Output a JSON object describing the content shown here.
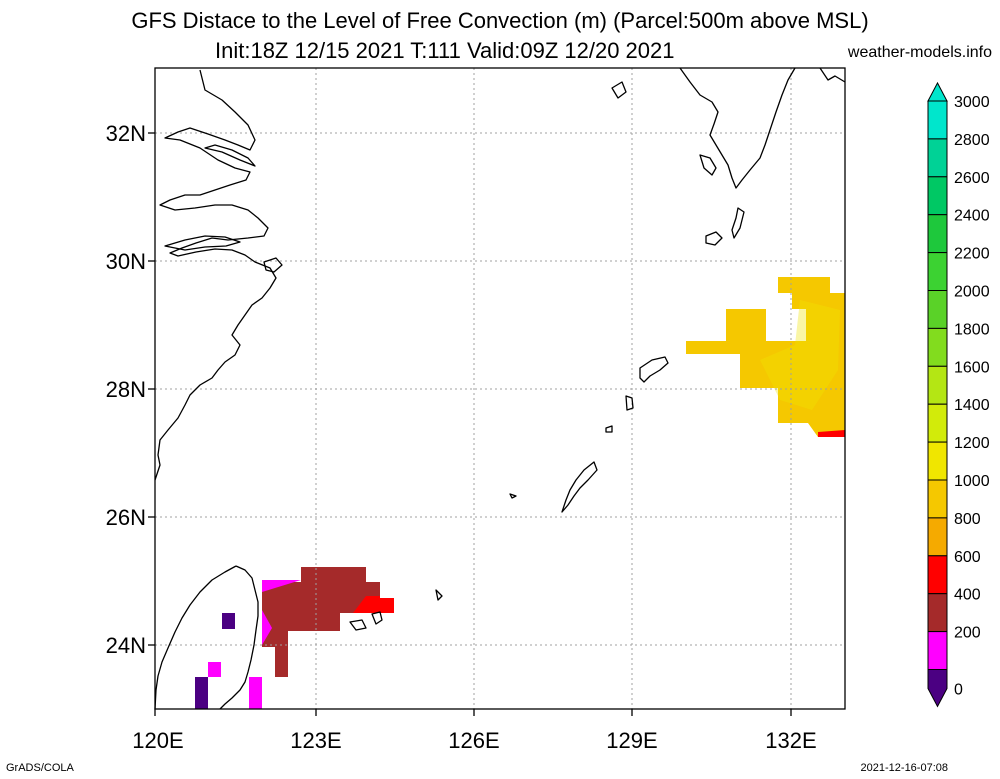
{
  "title": {
    "line1": "GFS Distace to the Level of Free Convection (m) (Parcel:500m above MSL)",
    "line2": "Init:18Z 12/15 2021 T:111 Valid:09Z 12/20 2021"
  },
  "site": "weather-models.info",
  "footer": {
    "left": "GrADS/COLA",
    "right": "2021-12-16-07:08"
  },
  "map": {
    "lat_labels": [
      "32N",
      "30N",
      "28N",
      "26N",
      "24N"
    ],
    "lon_labels": [
      "120E",
      "123E",
      "126E",
      "129E",
      "132E"
    ]
  },
  "colorbar": {
    "labels": [
      "3000",
      "2800",
      "2600",
      "2400",
      "2200",
      "2000",
      "1800",
      "1600",
      "1400",
      "1200",
      "1000",
      "800",
      "600",
      "400",
      "200",
      "0"
    ],
    "colors": [
      "#00e6cc",
      "#00d296",
      "#00c864",
      "#1ec83c",
      "#3cd232",
      "#5ad228",
      "#82dc1e",
      "#b4e614",
      "#d2eb0a",
      "#f0e600",
      "#f5c800",
      "#f5aa00",
      "#ff0000",
      "#a52a2a",
      "#ff00ff",
      "#4b0082"
    ]
  }
}
